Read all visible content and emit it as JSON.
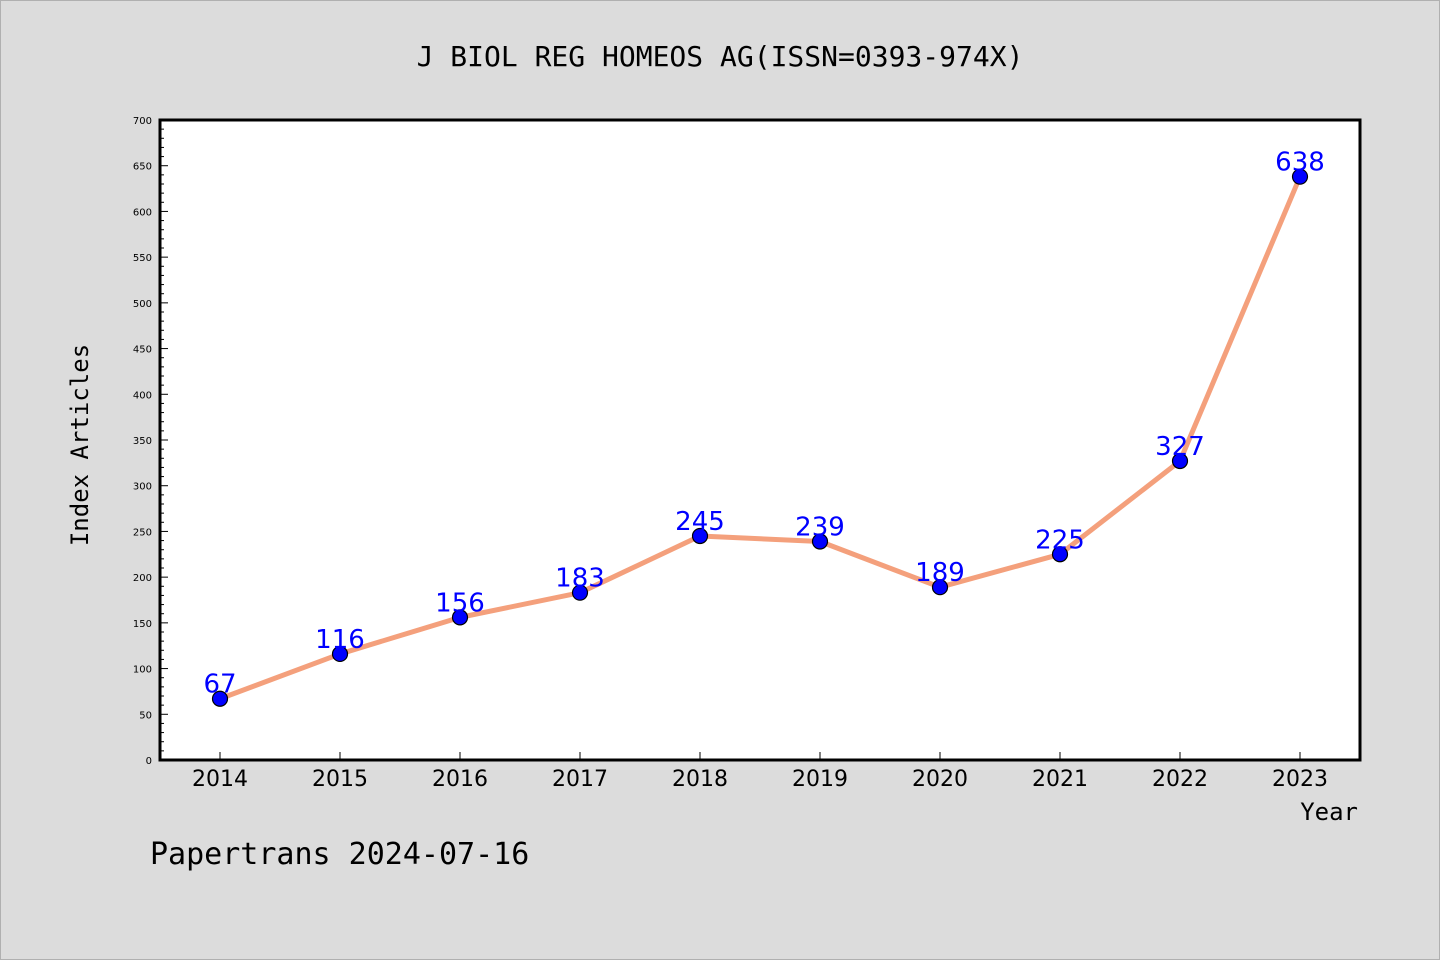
{
  "chart_data": {
    "type": "line",
    "title": "J BIOL REG HOMEOS AG(ISSN=0393-974X)",
    "xlabel": "Year",
    "ylabel": "Index Articles",
    "categories": [
      "2014",
      "2015",
      "2016",
      "2017",
      "2018",
      "2019",
      "2020",
      "2021",
      "2022",
      "2023"
    ],
    "series": [
      {
        "values": [
          67,
          116,
          156,
          183,
          245,
          239,
          189,
          225,
          327,
          638
        ]
      }
    ],
    "ylim": [
      0,
      700
    ],
    "yticks": [
      0,
      50,
      100,
      150,
      200,
      250,
      300,
      350,
      400,
      450,
      500,
      550,
      600,
      650,
      700
    ],
    "grid": false,
    "data_labels": true,
    "colors": {
      "background": "#dcdcdc",
      "plot_area": "#ffffff",
      "line": "#f4a07c",
      "marker": "#0000ff",
      "data_label": "#0000ff"
    }
  },
  "footer": "Papertrans 2024-07-16"
}
